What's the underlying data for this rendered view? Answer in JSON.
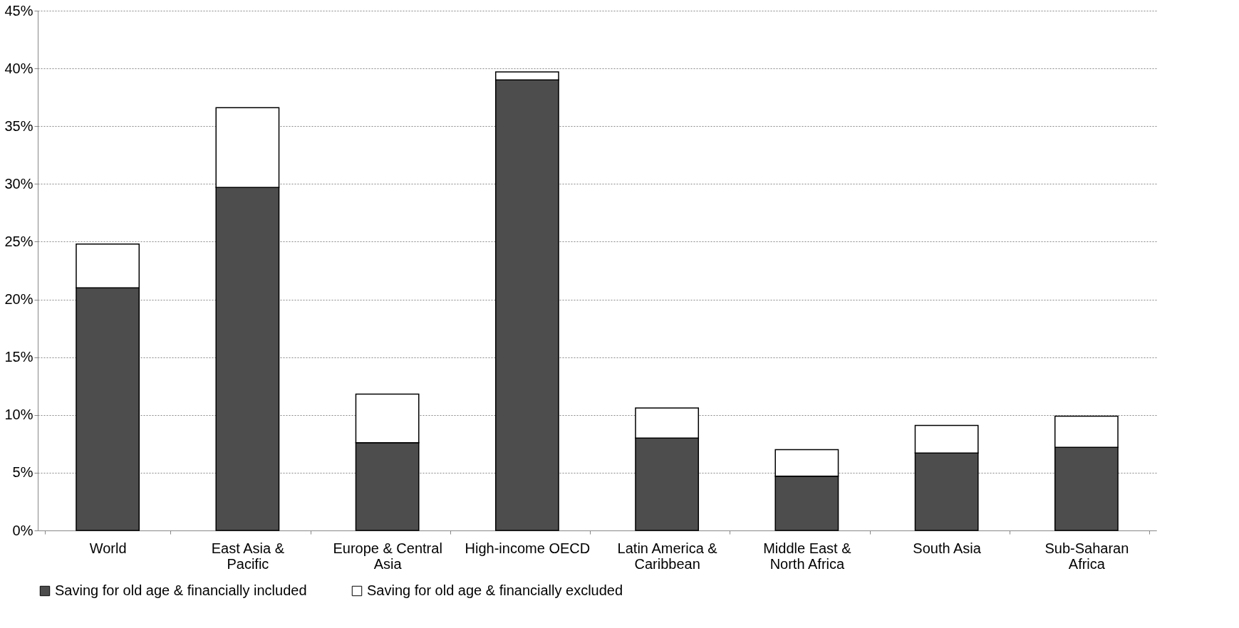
{
  "chart_data": {
    "type": "bar",
    "stacked": true,
    "categories": [
      "World",
      "East Asia & Pacific",
      "Europe & Central Asia",
      "High-income OECD",
      "Latin America & Caribbean",
      "Middle East & North Africa",
      "South Asia",
      "Sub-Saharan Africa"
    ],
    "series": [
      {
        "name": "Saving for old age & financially included",
        "color": "#4d4d4d",
        "values": [
          21.0,
          29.7,
          7.6,
          39.0,
          8.0,
          4.7,
          6.7,
          7.2
        ]
      },
      {
        "name": "Saving for old age & financially excluded",
        "color": "#ffffff",
        "values": [
          3.8,
          6.9,
          4.2,
          0.7,
          2.6,
          2.3,
          2.4,
          2.7
        ]
      }
    ],
    "ylim": [
      0,
      45
    ],
    "yticks": [
      {
        "value": 0,
        "label": "0%"
      },
      {
        "value": 5,
        "label": "5%"
      },
      {
        "value": 10,
        "label": "10%"
      },
      {
        "value": 15,
        "label": "15%"
      },
      {
        "value": 20,
        "label": "20%"
      },
      {
        "value": 25,
        "label": "25%"
      },
      {
        "value": 30,
        "label": "30%"
      },
      {
        "value": 35,
        "label": "35%"
      },
      {
        "value": 40,
        "label": "40%"
      },
      {
        "value": 45,
        "label": "45%"
      }
    ],
    "grid": "y",
    "legend": "bottom"
  }
}
